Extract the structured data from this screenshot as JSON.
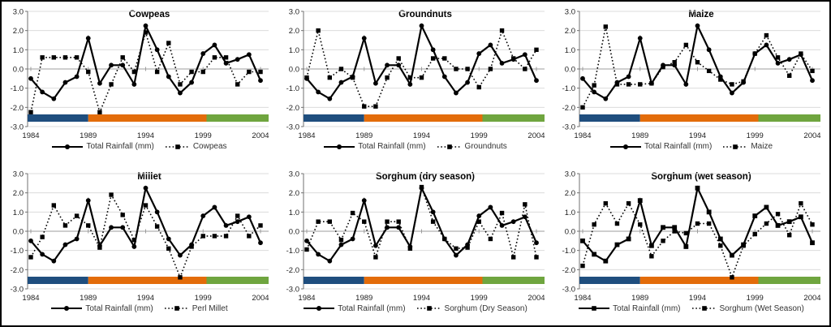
{
  "figure": {
    "description_visible_text_only": "Six line charts of standardized anomalies, 1984-2004",
    "line_color": "#000000",
    "period_bar_colors": {
      "blue": "#1F4E7E",
      "orange": "#E36C0A",
      "green": "#6FA53F"
    }
  },
  "chart_data": [
    {
      "type": "line",
      "title": "Cowpeas",
      "years": [
        1984,
        1985,
        1986,
        1987,
        1988,
        1989,
        1990,
        1991,
        1992,
        1993,
        1994,
        1995,
        1996,
        1997,
        1998,
        1999,
        2000,
        2001,
        2002,
        2003,
        2004
      ],
      "x_ticks": [
        "1984",
        "1989",
        "1994",
        "1999",
        "2004"
      ],
      "y_ticks": [
        "3.0",
        "2.0",
        "1.0",
        "0.0",
        "-1.0",
        "-2.0",
        "-3.0"
      ],
      "ylim": [
        -3,
        3
      ],
      "series": [
        {
          "name": "Total Rainfall (mm)",
          "style": "solid",
          "marker": "circle",
          "values": [
            -0.5,
            -1.2,
            -1.55,
            -0.7,
            -0.4,
            1.6,
            -0.75,
            0.2,
            0.2,
            -0.8,
            2.25,
            1.0,
            -0.4,
            -1.25,
            -0.7,
            0.8,
            1.25,
            0.3,
            0.5,
            0.75,
            -0.6
          ]
        },
        {
          "name": "Cowpeas",
          "style": "dotted",
          "marker": "square",
          "values": [
            -2.25,
            0.6,
            0.6,
            0.6,
            0.6,
            -0.15,
            -2.25,
            -0.8,
            0.6,
            -0.15,
            1.9,
            -0.15,
            1.35,
            -0.8,
            -0.15,
            -0.15,
            0.6,
            0.6,
            -0.8,
            -0.15,
            -0.15
          ]
        }
      ],
      "period_bars": [
        {
          "color": "#1F4E7E",
          "from": 1983.7,
          "to": 1989
        },
        {
          "color": "#E36C0A",
          "from": 1989,
          "to": 1999.3
        },
        {
          "color": "#6FA53F",
          "from": 1999.3,
          "to": 2004.9
        }
      ]
    },
    {
      "type": "line",
      "title": "Groundnuts",
      "years": [
        1984,
        1985,
        1986,
        1987,
        1988,
        1989,
        1990,
        1991,
        1992,
        1993,
        1994,
        1995,
        1996,
        1997,
        1998,
        1999,
        2000,
        2001,
        2002,
        2003,
        2004
      ],
      "x_ticks": [
        "1984",
        "1989",
        "1994",
        "1999",
        "2004"
      ],
      "y_ticks": [
        "3.0",
        "2.0",
        "1.0",
        "0.0",
        "-1.0",
        "-2.0",
        "-3.0"
      ],
      "ylim": [
        -3,
        3
      ],
      "series": [
        {
          "name": "Total Rainfall (mm)",
          "style": "solid",
          "marker": "circle",
          "values": [
            -0.5,
            -1.2,
            -1.55,
            -0.7,
            -0.4,
            1.6,
            -0.75,
            0.2,
            0.2,
            -0.8,
            2.25,
            1.0,
            -0.4,
            -1.25,
            -0.7,
            0.8,
            1.25,
            0.3,
            0.5,
            0.75,
            -0.6
          ]
        },
        {
          "name": "Groundnuts",
          "style": "dotted",
          "marker": "square",
          "values": [
            -0.45,
            2.0,
            -0.45,
            0.0,
            -0.45,
            -1.95,
            -1.95,
            -0.45,
            0.55,
            -0.45,
            -0.45,
            0.55,
            0.55,
            0.0,
            0.0,
            -0.95,
            0.0,
            2.0,
            0.55,
            0.0,
            1.0
          ]
        }
      ],
      "period_bars": [
        {
          "color": "#1F4E7E",
          "from": 1983.7,
          "to": 1989
        },
        {
          "color": "#E36C0A",
          "from": 1989,
          "to": 1999.3
        },
        {
          "color": "#6FA53F",
          "from": 1999.3,
          "to": 2004.9
        }
      ]
    },
    {
      "type": "line",
      "title": "Maize",
      "years": [
        1984,
        1985,
        1986,
        1987,
        1988,
        1989,
        1990,
        1991,
        1992,
        1993,
        1994,
        1995,
        1996,
        1997,
        1998,
        1999,
        2000,
        2001,
        2002,
        2003,
        2004
      ],
      "x_ticks": [
        "1984",
        "1989",
        "1994",
        "1999",
        "2004"
      ],
      "y_ticks": [
        "3.0",
        "2.0",
        "1.0",
        "0.0",
        "-1.0",
        "-2.0",
        "-3.0"
      ],
      "ylim": [
        -3,
        3
      ],
      "series": [
        {
          "name": "Total Rainfall (mm)",
          "style": "solid",
          "marker": "circle",
          "values": [
            -0.5,
            -1.2,
            -1.55,
            -0.7,
            -0.4,
            1.6,
            -0.75,
            0.2,
            0.2,
            -0.8,
            2.25,
            1.0,
            -0.4,
            -1.25,
            -0.7,
            0.8,
            1.25,
            0.3,
            0.5,
            0.75,
            -0.6
          ]
        },
        {
          "name": "Maize",
          "style": "dotted",
          "marker": "square",
          "values": [
            -2.0,
            -0.85,
            2.2,
            -0.8,
            -0.8,
            -0.8,
            -0.75,
            0.1,
            0.35,
            1.25,
            0.35,
            -0.1,
            -0.55,
            -0.8,
            -0.65,
            0.8,
            1.75,
            0.6,
            -0.35,
            0.8,
            -0.1
          ]
        }
      ],
      "period_bars": [
        {
          "color": "#1F4E7E",
          "from": 1983.7,
          "to": 1989
        },
        {
          "color": "#E36C0A",
          "from": 1989,
          "to": 1999.3
        },
        {
          "color": "#6FA53F",
          "from": 1999.3,
          "to": 2004.9
        }
      ]
    },
    {
      "type": "line",
      "title": "Millet",
      "years": [
        1984,
        1985,
        1986,
        1987,
        1988,
        1989,
        1990,
        1991,
        1992,
        1993,
        1994,
        1995,
        1996,
        1997,
        1998,
        1999,
        2000,
        2001,
        2002,
        2003,
        2004
      ],
      "x_ticks": [
        "1984",
        "1989",
        "1994",
        "1999",
        "2004"
      ],
      "y_ticks": [
        "3.0",
        "2.0",
        "1.0",
        "0.0",
        "-1.0",
        "-2.0",
        "-3.0"
      ],
      "ylim": [
        -3,
        3
      ],
      "series": [
        {
          "name": "Total Rainfall (mm)",
          "style": "solid",
          "marker": "circle",
          "values": [
            -0.5,
            -1.2,
            -1.55,
            -0.7,
            -0.4,
            1.6,
            -0.75,
            0.2,
            0.2,
            -0.8,
            2.25,
            1.0,
            -0.4,
            -1.25,
            -0.7,
            0.8,
            1.25,
            0.3,
            0.5,
            0.75,
            -0.6
          ]
        },
        {
          "name": "Perl Millet",
          "style": "dotted",
          "marker": "square",
          "values": [
            -1.35,
            -0.3,
            1.35,
            0.3,
            0.8,
            0.3,
            -0.85,
            1.9,
            0.85,
            -0.45,
            1.35,
            0.25,
            -0.9,
            -2.4,
            -0.8,
            -0.25,
            -0.25,
            -0.25,
            0.8,
            -0.25,
            0.3
          ]
        }
      ],
      "period_bars": [
        {
          "color": "#1F4E7E",
          "from": 1983.7,
          "to": 1989
        },
        {
          "color": "#E36C0A",
          "from": 1989,
          "to": 1999.3
        },
        {
          "color": "#6FA53F",
          "from": 1999.3,
          "to": 2004.9
        }
      ]
    },
    {
      "type": "line",
      "title": "Sorghum (dry season)",
      "years": [
        1984,
        1985,
        1986,
        1987,
        1988,
        1989,
        1990,
        1991,
        1992,
        1993,
        1994,
        1995,
        1996,
        1997,
        1998,
        1999,
        2000,
        2001,
        2002,
        2003,
        2004
      ],
      "x_ticks": [
        "1984",
        "1989",
        "1994",
        "1999",
        "2004"
      ],
      "y_ticks": [
        "3.0",
        "2.0",
        "1.0",
        "0.0",
        "-1.0",
        "-2.0",
        "-3.0"
      ],
      "ylim": [
        -3,
        3
      ],
      "series": [
        {
          "name": "Total Rainfall (mm)",
          "style": "solid",
          "marker": "circle",
          "values": [
            -0.5,
            -1.2,
            -1.55,
            -0.7,
            -0.4,
            1.6,
            -0.75,
            0.2,
            0.2,
            -0.8,
            2.25,
            1.0,
            -0.4,
            -1.25,
            -0.7,
            0.8,
            1.25,
            0.3,
            0.5,
            0.75,
            -0.6
          ]
        },
        {
          "name": "Sorghum (Dry Season)",
          "style": "dotted",
          "marker": "square",
          "values": [
            -0.95,
            0.5,
            0.5,
            -0.45,
            0.95,
            0.5,
            -1.35,
            0.5,
            0.5,
            -0.9,
            2.3,
            0.5,
            -0.4,
            -0.9,
            -0.85,
            0.5,
            -0.4,
            0.95,
            -1.35,
            1.4,
            -1.35
          ]
        }
      ],
      "period_bars": [
        {
          "color": "#1F4E7E",
          "from": 1983.7,
          "to": 1989
        },
        {
          "color": "#E36C0A",
          "from": 1989,
          "to": 1999.3
        },
        {
          "color": "#6FA53F",
          "from": 1999.3,
          "to": 2004.9
        }
      ]
    },
    {
      "type": "line",
      "title": "Sorghum (wet season)",
      "years": [
        1984,
        1985,
        1986,
        1987,
        1988,
        1989,
        1990,
        1991,
        1992,
        1993,
        1994,
        1995,
        1996,
        1997,
        1998,
        1999,
        2000,
        2001,
        2002,
        2003,
        2004
      ],
      "x_ticks": [
        "1984",
        "1989",
        "1994",
        "1999",
        "2004"
      ],
      "y_ticks": [
        "3.0",
        "2.0",
        "1.0",
        "0.0",
        "-1.0",
        "-2.0",
        "-3.0"
      ],
      "ylim": [
        -3,
        3
      ],
      "series": [
        {
          "name": "Total Rainfall (mm)",
          "style": "solid",
          "marker": "square",
          "values": [
            -0.5,
            -1.2,
            -1.55,
            -0.7,
            -0.4,
            1.6,
            -0.75,
            0.2,
            0.2,
            -0.8,
            2.25,
            1.0,
            -0.4,
            -1.25,
            -0.7,
            0.8,
            1.25,
            0.3,
            0.5,
            0.75,
            -0.6
          ]
        },
        {
          "name": "Sorghum (Wet Season)",
          "style": "dotted",
          "marker": "square",
          "values": [
            -1.8,
            0.35,
            1.45,
            0.4,
            1.45,
            0.35,
            -1.3,
            -0.5,
            0.0,
            -0.1,
            0.4,
            0.4,
            -0.75,
            -2.4,
            -0.75,
            -0.15,
            0.4,
            0.9,
            -0.2,
            1.45,
            0.35
          ]
        }
      ],
      "period_bars": [
        {
          "color": "#1F4E7E",
          "from": 1983.7,
          "to": 1989
        },
        {
          "color": "#E36C0A",
          "from": 1989,
          "to": 1999.3
        },
        {
          "color": "#6FA53F",
          "from": 1999.3,
          "to": 2004.9
        }
      ]
    }
  ]
}
